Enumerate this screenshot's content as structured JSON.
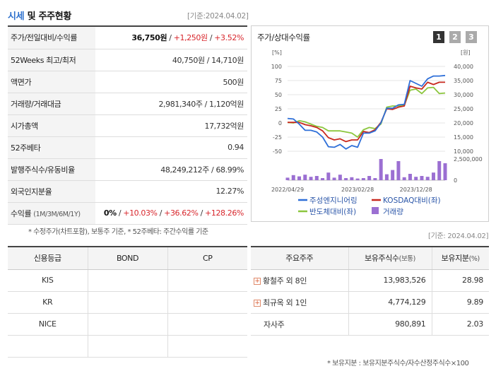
{
  "header": {
    "title_a": "시세",
    "title_b": "및 주주현황",
    "date": "[기준:2024.04.02]"
  },
  "info_rows": [
    {
      "label": "주가/전일대비/수익률",
      "v1": "36,750원",
      "v2": "+1,250원",
      "v3": "+3.52%"
    },
    {
      "label": "52Weeks 최고/최저",
      "value": "40,750원 / 14,710원"
    },
    {
      "label": "액면가",
      "value": "500원"
    },
    {
      "label": "거래량/거래대금",
      "value": "2,981,340주 / 1,120억원"
    },
    {
      "label": "시가총액",
      "value": "17,732억원"
    },
    {
      "label": "52주베타",
      "value": "0.94"
    },
    {
      "label": "발행주식수/유동비율",
      "value": "48,249,212주 / 68.99%"
    },
    {
      "label": "외국인지분율",
      "value": "12.27%"
    },
    {
      "label": "수익률",
      "label_small": "(1M/3M/6M/1Y)",
      "r1": "0%",
      "r2": "+10.03%",
      "r3": "+36.62%",
      "r4": "+128.26%"
    }
  ],
  "note1": "* 수정주가(차트포함), 보통주 기준, * 52주베타: 주간수익률 기준",
  "chart_panel": {
    "title": "주가/상대수익률",
    "pages": [
      "1",
      "2",
      "3"
    ],
    "date": "[기준: 2024.04.02]"
  },
  "chart_data": {
    "type": "line",
    "left_axis_label": "[%]",
    "right_axis_label": "[원]",
    "left_ticks": [
      "100",
      "75",
      "50",
      "25",
      "0",
      "-25",
      "-50"
    ],
    "right_ticks": [
      "40,000",
      "35,000",
      "30,000",
      "25,000",
      "20,000",
      "15,000",
      "10,000"
    ],
    "volume_ticks": [
      "2,500,000",
      "0"
    ],
    "x_labels": [
      "2022/04/29",
      "2023/02/28",
      "2023/12/28"
    ],
    "ylim_left": [
      -50,
      100
    ],
    "series": [
      {
        "name": "주성엔지니어링",
        "color": "#2e6fd8",
        "values": [
          8,
          7,
          -2,
          -13,
          -13,
          -16,
          -25,
          -42,
          -43,
          -38,
          -46,
          -40,
          -43,
          -18,
          -18,
          -14,
          0,
          26,
          26,
          32,
          33,
          75,
          70,
          65,
          78,
          83,
          83,
          84
        ]
      },
      {
        "name": "KOSDAQ대비(좌)",
        "color": "#c8281e",
        "values": [
          1,
          1,
          1,
          -3,
          -5,
          -8,
          -14,
          -26,
          -30,
          -28,
          -33,
          -30,
          -30,
          -15,
          -17,
          -12,
          1,
          25,
          24,
          28,
          30,
          65,
          62,
          60,
          72,
          68,
          72,
          72
        ]
      },
      {
        "name": "반도체대비(좌)",
        "color": "#8cc63e",
        "values": [
          1,
          0,
          4,
          2,
          -2,
          -6,
          -8,
          -14,
          -14,
          -14,
          -16,
          -18,
          -25,
          -12,
          -8,
          -10,
          -2,
          28,
          30,
          30,
          31,
          58,
          60,
          52,
          62,
          63,
          52,
          53
        ]
      }
    ],
    "volume": {
      "name": "거래량",
      "color": "#9b6fd2",
      "values": [
        6,
        12,
        9,
        13,
        8,
        10,
        5,
        18,
        6,
        13,
        5,
        7,
        4,
        5,
        10,
        5,
        50,
        14,
        24,
        45,
        7,
        15,
        8,
        10,
        8,
        18,
        45,
        40
      ]
    }
  },
  "credit": {
    "headers": [
      "신용등급",
      "BOND",
      "CP"
    ],
    "rows": [
      [
        "KIS",
        "",
        ""
      ],
      [
        "KR",
        "",
        ""
      ],
      [
        "NICE",
        "",
        ""
      ],
      [
        "",
        "",
        ""
      ]
    ]
  },
  "holders": {
    "headers": [
      "주요주주",
      "보유주식수",
      "(보통)",
      "보유지분",
      "(%)"
    ],
    "rows": [
      {
        "name": "황철주 외 8인",
        "shares": "13,983,526",
        "pct": "28.98",
        "expand": true
      },
      {
        "name": "최규옥 외 1인",
        "shares": "4,774,129",
        "pct": "9.89",
        "expand": true
      },
      {
        "name": "자사주",
        "shares": "980,891",
        "pct": "2.03",
        "expand": false
      }
    ],
    "note": "* 보유지분 : 보유지분주식수/자수산정주식수×100"
  },
  "colors": {
    "accent_blue": "#2a6ecc",
    "red": "#d8262c",
    "page_active": "#333333",
    "page_inactive": "#aaaaaa"
  }
}
